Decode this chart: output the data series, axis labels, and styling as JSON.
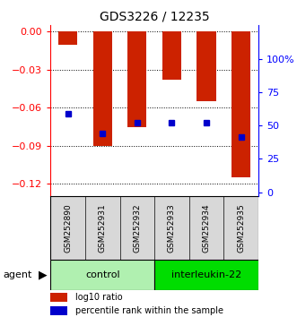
{
  "title": "GDS3226 / 12235",
  "samples": [
    "GSM252890",
    "GSM252931",
    "GSM252932",
    "GSM252933",
    "GSM252934",
    "GSM252935"
  ],
  "bar_values": [
    -0.01,
    -0.09,
    -0.075,
    -0.038,
    -0.055,
    -0.115
  ],
  "percentile_values": [
    -0.065,
    -0.08,
    -0.072,
    -0.072,
    -0.072,
    -0.083
  ],
  "bar_color": "#cc2200",
  "blue_color": "#0000cc",
  "ylim_left": [
    -0.13,
    0.005
  ],
  "yticks_left": [
    0,
    -0.03,
    -0.06,
    -0.09,
    -0.12
  ],
  "ylim_right": [
    -3.25,
    125
  ],
  "yticks_right": [
    0,
    25,
    50,
    75,
    100
  ],
  "groups": [
    {
      "label": "control",
      "indices": [
        0,
        1,
        2
      ],
      "color": "#b0f0b0"
    },
    {
      "label": "interleukin-22",
      "indices": [
        3,
        4,
        5
      ],
      "color": "#00dd00"
    }
  ],
  "bar_width": 0.55,
  "agent_label": "agent",
  "legend_ratio_label": "log10 ratio",
  "legend_pct_label": "percentile rank within the sample"
}
